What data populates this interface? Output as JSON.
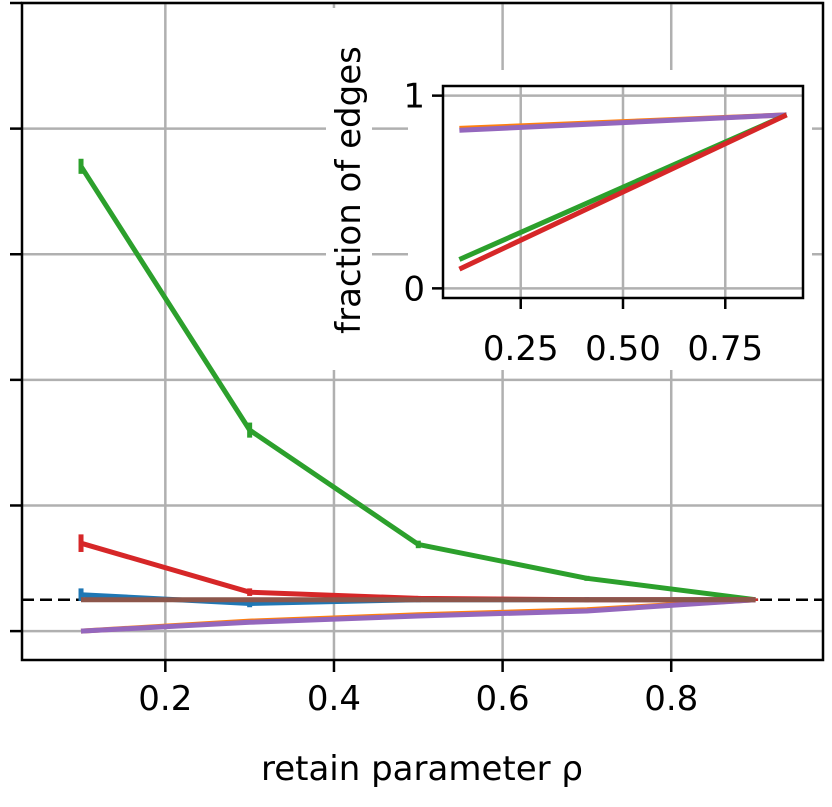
{
  "chart_data": [
    {
      "type": "line",
      "title": "",
      "xlabel": "retain parameter ρ",
      "ylabel": "",
      "xlim": [
        0.03,
        0.98
      ],
      "ylim": [
        -0.23,
        5.0
      ],
      "xticks": [
        "0.2",
        "0.4",
        "0.6",
        "0.8"
      ],
      "xtick_values": [
        0.2,
        0.4,
        0.6,
        0.8
      ],
      "ytick_values": [
        0,
        1,
        2,
        3,
        4,
        5
      ],
      "grid": true,
      "legend": "none",
      "reference_line": {
        "style": "dashed",
        "color": "#000000",
        "y": 0.25
      },
      "series": [
        {
          "color": "#1f77b4",
          "x": [
            0.1,
            0.3,
            0.5,
            0.7,
            0.9
          ],
          "y": [
            0.29,
            0.22,
            0.25,
            0.25,
            0.25
          ],
          "err": [
            0.05,
            0.03,
            0.02,
            0.02,
            0.01
          ]
        },
        {
          "color": "#ff7f0e",
          "x": [
            0.1,
            0.3,
            0.5,
            0.7,
            0.9
          ],
          "y": [
            0.0,
            0.08,
            0.13,
            0.17,
            0.25
          ],
          "err": [
            0.0,
            0.0,
            0.0,
            0.0,
            0.0
          ]
        },
        {
          "color": "#2ca02c",
          "x": [
            0.1,
            0.3,
            0.5,
            0.7,
            0.9
          ],
          "y": [
            3.7,
            1.6,
            0.69,
            0.42,
            0.25
          ],
          "err": [
            0.06,
            0.06,
            0.03,
            0.02,
            0.01
          ]
        },
        {
          "color": "#d62728",
          "x": [
            0.1,
            0.3,
            0.5,
            0.7,
            0.9
          ],
          "y": [
            0.7,
            0.31,
            0.26,
            0.25,
            0.25
          ],
          "err": [
            0.07,
            0.03,
            0.02,
            0.01,
            0.01
          ]
        },
        {
          "color": "#9467bd",
          "x": [
            0.1,
            0.3,
            0.5,
            0.7,
            0.9
          ],
          "y": [
            0.0,
            0.07,
            0.12,
            0.16,
            0.25
          ],
          "err": [
            0.0,
            0.0,
            0.0,
            0.0,
            0.0
          ]
        },
        {
          "color": "#8c564b",
          "x": [
            0.1,
            0.3,
            0.5,
            0.7,
            0.9
          ],
          "y": [
            0.25,
            0.25,
            0.25,
            0.25,
            0.25
          ],
          "err": [
            0.0,
            0.0,
            0.0,
            0.0,
            0.0
          ]
        }
      ]
    },
    {
      "type": "line",
      "title": "",
      "xlabel": "",
      "ylabel": "fraction of edges",
      "xlim": [
        0.06,
        0.94
      ],
      "ylim": [
        -0.05,
        1.05
      ],
      "xticks": [
        "0.25",
        "0.50",
        "0.75"
      ],
      "xtick_values": [
        0.25,
        0.5,
        0.75
      ],
      "yticks": [
        "0",
        "1"
      ],
      "ytick_values": [
        0,
        1
      ],
      "grid": true,
      "legend": "none",
      "series": [
        {
          "color": "#ff7f0e",
          "x": [
            0.1,
            0.9
          ],
          "y": [
            0.83,
            0.9
          ]
        },
        {
          "color": "#9467bd",
          "x": [
            0.1,
            0.9
          ],
          "y": [
            0.82,
            0.9
          ]
        },
        {
          "color": "#2ca02c",
          "x": [
            0.1,
            0.9
          ],
          "y": [
            0.15,
            0.9
          ]
        },
        {
          "color": "#d62728",
          "x": [
            0.1,
            0.9
          ],
          "y": [
            0.1,
            0.9
          ]
        }
      ]
    }
  ]
}
